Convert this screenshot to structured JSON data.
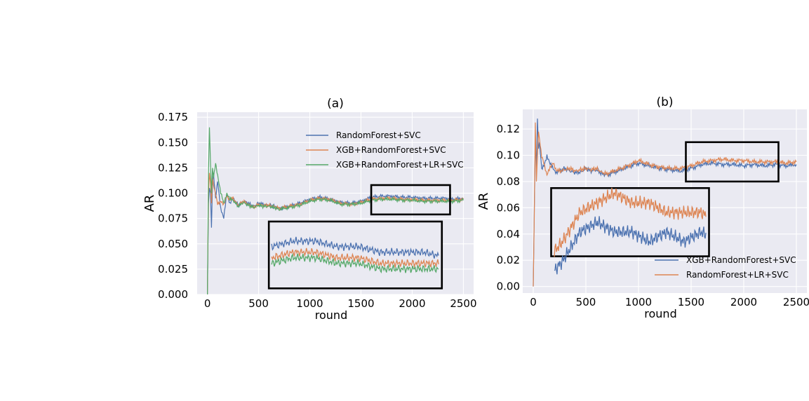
{
  "chart_data": [
    {
      "panel": "(a)",
      "type": "line",
      "title": "(a)",
      "xlabel": "round",
      "ylabel": "AR",
      "xlim": [
        -100,
        2600
      ],
      "ylim": [
        0.0,
        0.18
      ],
      "xticks": [
        0,
        500,
        1000,
        1500,
        2000,
        2500
      ],
      "xtick_labels": [
        "0",
        "500",
        "1000",
        "1500",
        "2000",
        "2500"
      ],
      "yticks": [
        0.0,
        0.025,
        0.05,
        0.075,
        0.1,
        0.125,
        0.15,
        0.175
      ],
      "ytick_labels": [
        "0.000",
        "0.025",
        "0.050",
        "0.075",
        "0.100",
        "0.125",
        "0.150",
        "0.175"
      ],
      "grid": true,
      "legend_position": "upper-right",
      "series": [
        {
          "name": "RandomForest+SVC",
          "color": "#4c72b0",
          "x": [
            0,
            10,
            20,
            30,
            40,
            50,
            60,
            80,
            100,
            130,
            160,
            190,
            220,
            250,
            300,
            350,
            400,
            450,
            500,
            550,
            600,
            650,
            700,
            800,
            900,
            1000,
            1100,
            1200,
            1300,
            1400,
            1500,
            1600,
            1700,
            1800,
            1900,
            2000,
            2100,
            2200,
            2300,
            2400,
            2500
          ],
          "y": [
            0.0,
            0.09,
            0.105,
            0.1,
            0.066,
            0.11,
            0.12,
            0.095,
            0.112,
            0.085,
            0.075,
            0.1,
            0.09,
            0.095,
            0.088,
            0.092,
            0.09,
            0.087,
            0.09,
            0.089,
            0.088,
            0.087,
            0.085,
            0.087,
            0.09,
            0.094,
            0.096,
            0.094,
            0.091,
            0.09,
            0.092,
            0.096,
            0.097,
            0.097,
            0.096,
            0.096,
            0.095,
            0.095,
            0.095,
            0.094,
            0.095
          ]
        },
        {
          "name": "XGB+RandomForest+SVC",
          "color": "#dd8452",
          "x": [
            0,
            10,
            20,
            30,
            40,
            50,
            60,
            80,
            100,
            130,
            160,
            190,
            220,
            250,
            300,
            350,
            400,
            450,
            500,
            550,
            600,
            650,
            700,
            800,
            900,
            1000,
            1100,
            1200,
            1300,
            1400,
            1500,
            1600,
            1700,
            1800,
            1900,
            2000,
            2100,
            2200,
            2300,
            2400,
            2500
          ],
          "y": [
            0.0,
            0.1,
            0.12,
            0.11,
            0.09,
            0.115,
            0.108,
            0.1,
            0.09,
            0.092,
            0.088,
            0.098,
            0.093,
            0.095,
            0.088,
            0.092,
            0.089,
            0.086,
            0.089,
            0.088,
            0.088,
            0.087,
            0.085,
            0.087,
            0.089,
            0.093,
            0.095,
            0.094,
            0.09,
            0.089,
            0.091,
            0.094,
            0.095,
            0.095,
            0.094,
            0.094,
            0.093,
            0.093,
            0.093,
            0.093,
            0.094
          ]
        },
        {
          "name": "XGB+RandomForest+LR+SVC",
          "color": "#55a868",
          "x": [
            0,
            10,
            20,
            30,
            40,
            50,
            60,
            80,
            100,
            130,
            160,
            190,
            220,
            250,
            300,
            350,
            400,
            450,
            500,
            550,
            600,
            650,
            700,
            800,
            900,
            1000,
            1100,
            1200,
            1300,
            1400,
            1500,
            1600,
            1700,
            1800,
            1900,
            2000,
            2100,
            2200,
            2300,
            2400,
            2500
          ],
          "y": [
            0.0,
            0.12,
            0.165,
            0.13,
            0.1,
            0.125,
            0.115,
            0.13,
            0.118,
            0.1,
            0.09,
            0.1,
            0.094,
            0.093,
            0.087,
            0.091,
            0.088,
            0.086,
            0.088,
            0.087,
            0.087,
            0.086,
            0.084,
            0.086,
            0.088,
            0.092,
            0.094,
            0.093,
            0.089,
            0.089,
            0.09,
            0.093,
            0.094,
            0.094,
            0.093,
            0.093,
            0.092,
            0.092,
            0.092,
            0.092,
            0.093
          ]
        }
      ],
      "zoom_box": {
        "x": [
          1600,
          2370
        ],
        "y": [
          0.079,
          0.108
        ]
      },
      "inset_box": {
        "x": [
          600,
          2290
        ],
        "y": [
          0.006,
          0.072
        ]
      },
      "inset_ylim": [
        0.0885,
        0.1005
      ]
    },
    {
      "panel": "(b)",
      "type": "line",
      "title": "(b)",
      "xlabel": "round",
      "ylabel": "AR",
      "xlim": [
        -100,
        2600
      ],
      "ylim": [
        -0.005,
        0.135
      ],
      "xticks": [
        0,
        500,
        1000,
        1500,
        2000,
        2500
      ],
      "xtick_labels": [
        "0",
        "500",
        "1000",
        "1500",
        "2000",
        "2500"
      ],
      "yticks": [
        0.0,
        0.02,
        0.04,
        0.06,
        0.08,
        0.1,
        0.12
      ],
      "ytick_labels": [
        "0.00",
        "0.02",
        "0.04",
        "0.06",
        "0.08",
        "0.10",
        "0.12"
      ],
      "grid": true,
      "legend_position": "lower-right",
      "series": [
        {
          "name": "XGB+RandomForest+SVC",
          "color": "#4c72b0",
          "x": [
            0,
            10,
            20,
            30,
            40,
            50,
            60,
            80,
            100,
            130,
            160,
            190,
            220,
            250,
            300,
            350,
            400,
            450,
            500,
            550,
            600,
            650,
            700,
            800,
            900,
            1000,
            1100,
            1200,
            1300,
            1400,
            1500,
            1600,
            1700,
            1800,
            1900,
            2000,
            2100,
            2200,
            2300,
            2400,
            2500
          ],
          "y": [
            0.0,
            0.06,
            0.11,
            0.09,
            0.128,
            0.105,
            0.11,
            0.09,
            0.092,
            0.1,
            0.093,
            0.09,
            0.087,
            0.088,
            0.09,
            0.088,
            0.087,
            0.087,
            0.09,
            0.088,
            0.089,
            0.086,
            0.085,
            0.088,
            0.091,
            0.094,
            0.092,
            0.09,
            0.089,
            0.088,
            0.09,
            0.093,
            0.094,
            0.093,
            0.093,
            0.092,
            0.093,
            0.092,
            0.093,
            0.092,
            0.093
          ]
        },
        {
          "name": "RandomForest+LR+SVC",
          "color": "#dd8452",
          "x": [
            0,
            10,
            20,
            30,
            40,
            50,
            60,
            80,
            100,
            130,
            160,
            190,
            220,
            250,
            300,
            350,
            400,
            450,
            500,
            550,
            600,
            650,
            700,
            800,
            900,
            1000,
            1100,
            1200,
            1300,
            1400,
            1500,
            1600,
            1700,
            1800,
            1900,
            2000,
            2100,
            2200,
            2300,
            2400,
            2500
          ],
          "y": [
            0.0,
            0.055,
            0.125,
            0.08,
            0.1,
            0.118,
            0.112,
            0.1,
            0.095,
            0.085,
            0.09,
            0.095,
            0.088,
            0.088,
            0.089,
            0.09,
            0.088,
            0.089,
            0.09,
            0.089,
            0.09,
            0.087,
            0.086,
            0.089,
            0.092,
            0.096,
            0.093,
            0.091,
            0.09,
            0.09,
            0.092,
            0.095,
            0.096,
            0.097,
            0.096,
            0.096,
            0.095,
            0.095,
            0.095,
            0.094,
            0.095
          ]
        }
      ],
      "zoom_box": {
        "x": [
          1450,
          2330
        ],
        "y": [
          0.08,
          0.11
        ]
      },
      "inset_box": {
        "x": [
          170,
          1670
        ],
        "y": [
          0.023,
          0.075
        ]
      },
      "inset_ylim": [
        0.0905,
        0.0975
      ]
    }
  ]
}
